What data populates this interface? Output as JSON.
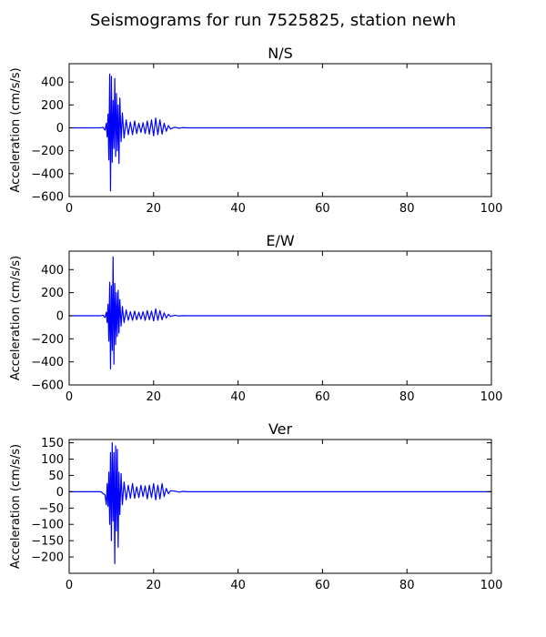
{
  "title": "Seismograms for run 7525825, station newh",
  "colors": {
    "trace": "#0000ff",
    "axes": "#000000",
    "background": "#ffffff"
  },
  "chart_data": [
    {
      "type": "line",
      "title": "N/S",
      "xlabel": "",
      "ylabel": "Acceleration (cm/s/s)",
      "xlim": [
        0,
        100
      ],
      "ylim": [
        -600,
        560
      ],
      "xticks": [
        0,
        20,
        40,
        60,
        80,
        100
      ],
      "yticks": [
        -600,
        -400,
        -200,
        0,
        200,
        400
      ],
      "grid": false,
      "series": [
        {
          "color": "#0000ff",
          "x": [
            0,
            7.5,
            8.0,
            8.5,
            8.8,
            9.0,
            9.2,
            9.4,
            9.6,
            9.8,
            10.0,
            10.2,
            10.4,
            10.6,
            10.8,
            11.0,
            11.2,
            11.4,
            11.6,
            11.8,
            12.0,
            12.3,
            12.6,
            13.0,
            13.5,
            14.0,
            14.5,
            15.0,
            15.5,
            16.0,
            16.5,
            17.0,
            17.5,
            18.0,
            18.5,
            19.0,
            19.5,
            20.0,
            20.5,
            21.0,
            21.5,
            22.0,
            22.5,
            23.0,
            23.5,
            24.0,
            25.0,
            26.0,
            27.0,
            28.0,
            100
          ],
          "y": [
            0,
            0,
            5,
            -20,
            40,
            -80,
            120,
            -280,
            470,
            -550,
            450,
            -300,
            240,
            -180,
            430,
            -250,
            300,
            -200,
            200,
            -310,
            260,
            -120,
            130,
            -90,
            70,
            -60,
            50,
            -60,
            60,
            -50,
            40,
            -40,
            45,
            -50,
            60,
            -55,
            70,
            -70,
            85,
            -60,
            70,
            -55,
            40,
            -30,
            20,
            -10,
            5,
            -3,
            2,
            0,
            0
          ]
        }
      ]
    },
    {
      "type": "line",
      "title": "E/W",
      "xlabel": "",
      "ylabel": "Acceleration (cm/s/s)",
      "xlim": [
        0,
        100
      ],
      "ylim": [
        -600,
        560
      ],
      "xticks": [
        0,
        20,
        40,
        60,
        80,
        100
      ],
      "yticks": [
        -600,
        -400,
        -200,
        0,
        200,
        400
      ],
      "grid": false,
      "series": [
        {
          "color": "#0000ff",
          "x": [
            0,
            7.5,
            8.0,
            8.5,
            8.8,
            9.0,
            9.2,
            9.4,
            9.6,
            9.8,
            10.0,
            10.2,
            10.4,
            10.6,
            10.8,
            11.0,
            11.2,
            11.4,
            11.6,
            11.8,
            12.0,
            12.3,
            12.6,
            13.0,
            13.5,
            14.0,
            14.5,
            15.0,
            15.5,
            16.0,
            16.5,
            17.0,
            17.5,
            18.0,
            18.5,
            19.0,
            19.5,
            20.0,
            20.5,
            21.0,
            21.5,
            22.0,
            22.5,
            23.0,
            23.5,
            24.0,
            25.0,
            26.0,
            27.0,
            28.0,
            100
          ],
          "y": [
            0,
            0,
            5,
            -15,
            30,
            -60,
            100,
            -220,
            290,
            -460,
            260,
            -300,
            510,
            -420,
            280,
            -250,
            200,
            -180,
            220,
            -150,
            140,
            -90,
            80,
            -60,
            50,
            -40,
            35,
            -40,
            40,
            -35,
            30,
            -30,
            35,
            -40,
            45,
            -35,
            40,
            -45,
            60,
            -40,
            45,
            -35,
            25,
            -20,
            12,
            -6,
            4,
            -2,
            1,
            0,
            0
          ]
        }
      ]
    },
    {
      "type": "line",
      "title": "Ver",
      "xlabel": "",
      "ylabel": "Acceleration (cm/s/s)",
      "xlim": [
        0,
        100
      ],
      "ylim": [
        -250,
        160
      ],
      "xticks": [
        0,
        20,
        40,
        60,
        80,
        100
      ],
      "yticks": [
        -200,
        -150,
        -100,
        -50,
        0,
        50,
        100,
        150
      ],
      "grid": false,
      "series": [
        {
          "color": "#0000ff",
          "x": [
            0,
            7.5,
            8.0,
            8.5,
            8.8,
            9.0,
            9.2,
            9.4,
            9.6,
            9.8,
            10.0,
            10.2,
            10.4,
            10.6,
            10.8,
            11.0,
            11.2,
            11.4,
            11.6,
            11.8,
            12.0,
            12.3,
            12.6,
            13.0,
            13.5,
            14.0,
            14.5,
            15.0,
            15.5,
            16.0,
            16.5,
            17.0,
            17.5,
            18.0,
            18.5,
            19.0,
            19.5,
            20.0,
            20.5,
            21.0,
            21.5,
            22.0,
            22.5,
            23.0,
            23.5,
            24.0,
            25.0,
            26.0,
            27.0,
            28.0,
            100
          ],
          "y": [
            0,
            0,
            -5,
            -10,
            -40,
            25,
            -45,
            60,
            -100,
            120,
            -150,
            150,
            -90,
            120,
            -220,
            140,
            -120,
            130,
            -170,
            60,
            -70,
            55,
            -40,
            30,
            -25,
            20,
            -20,
            25,
            -20,
            15,
            -18,
            20,
            -15,
            18,
            -22,
            20,
            -18,
            25,
            -25,
            20,
            -22,
            25,
            -15,
            10,
            -6,
            3,
            2,
            -1,
            1,
            0,
            0
          ]
        }
      ]
    }
  ]
}
